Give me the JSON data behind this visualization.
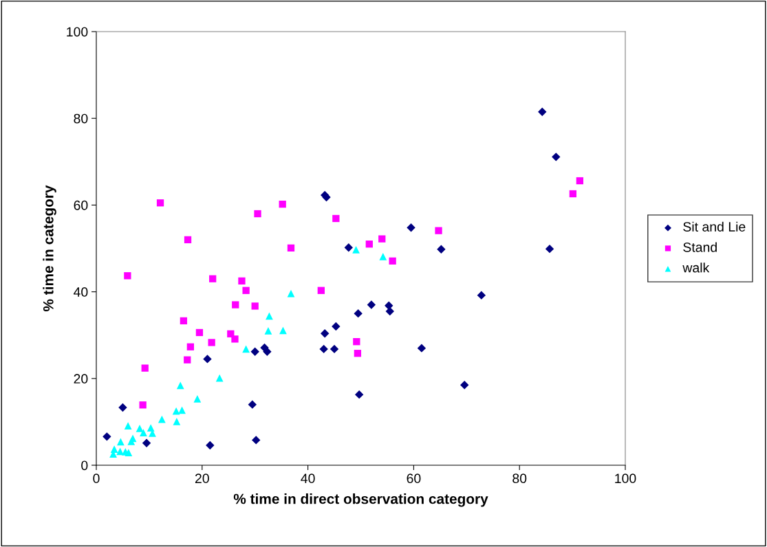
{
  "chart_data": {
    "type": "scatter",
    "xlabel": "% time in direct observation category",
    "ylabel": "% time in category",
    "xlim": [
      0,
      100
    ],
    "ylim": [
      0,
      100
    ],
    "xticks": [
      0,
      20,
      40,
      60,
      80,
      100
    ],
    "yticks": [
      0,
      20,
      40,
      60,
      80,
      100
    ],
    "grid": false,
    "legend": "right",
    "series": [
      {
        "name": "Sit and Lie",
        "color": "#000080",
        "marker": "diamond",
        "x": [
          2,
          5,
          9.5,
          21,
          21.5,
          29.5,
          30,
          30.2,
          31.8,
          32.3,
          43.2,
          43.5,
          43.2,
          43,
          45,
          45.3,
          47.7,
          49.5,
          49.7,
          52,
          55.3,
          55.5,
          59.5,
          61.5,
          65.2,
          69.6,
          72.8,
          84.3,
          85.7,
          86.9
        ],
        "values": [
          6.6,
          13.3,
          5.1,
          24.5,
          4.6,
          14,
          26.2,
          5.8,
          27.1,
          26.2,
          62.3,
          61.8,
          30.4,
          26.8,
          26.8,
          32,
          50.2,
          35,
          16.3,
          37,
          36.8,
          35.5,
          54.8,
          27,
          49.8,
          18.5,
          39.2,
          81.5,
          49.9,
          71.1
        ]
      },
      {
        "name": "Stand",
        "color": "#ff00ff",
        "marker": "square",
        "x": [
          5.9,
          8.8,
          9.2,
          12.1,
          16.5,
          17.2,
          17.3,
          17.8,
          19.5,
          21.8,
          22,
          25.4,
          26.2,
          26.3,
          27.5,
          28.3,
          30,
          30.5,
          35.2,
          36.8,
          42.5,
          45.3,
          49.2,
          49.4,
          51.6,
          54,
          56,
          64.7,
          90.1,
          91.4
        ],
        "values": [
          43.7,
          13.9,
          22.4,
          60.5,
          33.3,
          24.3,
          52,
          27.3,
          30.6,
          28.3,
          43,
          30.3,
          29.1,
          37,
          42.5,
          40.3,
          36.7,
          58,
          60.2,
          50.1,
          40.3,
          56.9,
          28.5,
          25.8,
          51,
          52.2,
          47.1,
          54.1,
          62.6,
          65.6
        ]
      },
      {
        "name": "walk",
        "color": "#00ffff",
        "marker": "triangle",
        "x": [
          3.2,
          3.4,
          4.5,
          4.6,
          5.5,
          6,
          6.1,
          6.6,
          6.9,
          8.2,
          8.9,
          10.3,
          10.6,
          12.4,
          15.1,
          15.2,
          15.9,
          16.2,
          19.1,
          23.3,
          28.3,
          32.5,
          32.7,
          35.3,
          36.8,
          49.1,
          54.2
        ],
        "values": [
          2.6,
          3.7,
          3.2,
          5.4,
          3.1,
          9.1,
          2.9,
          5.5,
          6.2,
          8.5,
          7.5,
          8.6,
          7.4,
          10.6,
          12.5,
          10.1,
          18.4,
          12.7,
          15.3,
          20.1,
          26.8,
          31,
          34.4,
          31.1,
          39.6,
          49.7,
          48.1
        ]
      }
    ]
  }
}
